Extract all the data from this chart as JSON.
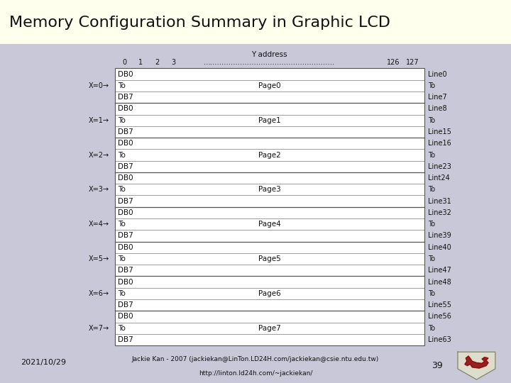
{
  "title": "Memory Configuration Summary in Graphic LCD",
  "title_bg": "#ffffee",
  "slide_bg": "#c8c8d8",
  "table_bg": "#ffffff",
  "y_address_label": "Y address",
  "y_col_labels": [
    "0",
    "1",
    "2",
    "3",
    "…………………………………………………",
    "126",
    "127"
  ],
  "pages": [
    "Page0",
    "Page1",
    "Page2",
    "Page3",
    "Page4",
    "Page5",
    "Page6",
    "Page7"
  ],
  "x_labels": [
    "X=0→",
    "X=1→",
    "X=2→",
    "X=3→",
    "X=4→",
    "X=5→",
    "X=6→",
    "X=7→"
  ],
  "line_labels_right": [
    "Line0",
    "To",
    "Line7",
    "Line8",
    "To",
    "Line15",
    "Line16",
    "To",
    "Line23",
    "Lint24",
    "To",
    "Line31",
    "Line32",
    "To",
    "Line39",
    "Line40",
    "To",
    "Line47",
    "Line48",
    "To",
    "Line55",
    "Line56",
    "To",
    "Line63"
  ],
  "footer_date": "2021/10/29",
  "footer_author": "Jackie Kan - 2007 (jackiekan@LinTon.LD24H.com/jackiekan@csie.ntu.edu.tw)",
  "footer_url": "http://linton.ld24h.com/~jackiekan/",
  "footer_page": "39",
  "title_fontsize": 16,
  "table_text_fontsize": 7.5,
  "header_text_fontsize": 7.5
}
